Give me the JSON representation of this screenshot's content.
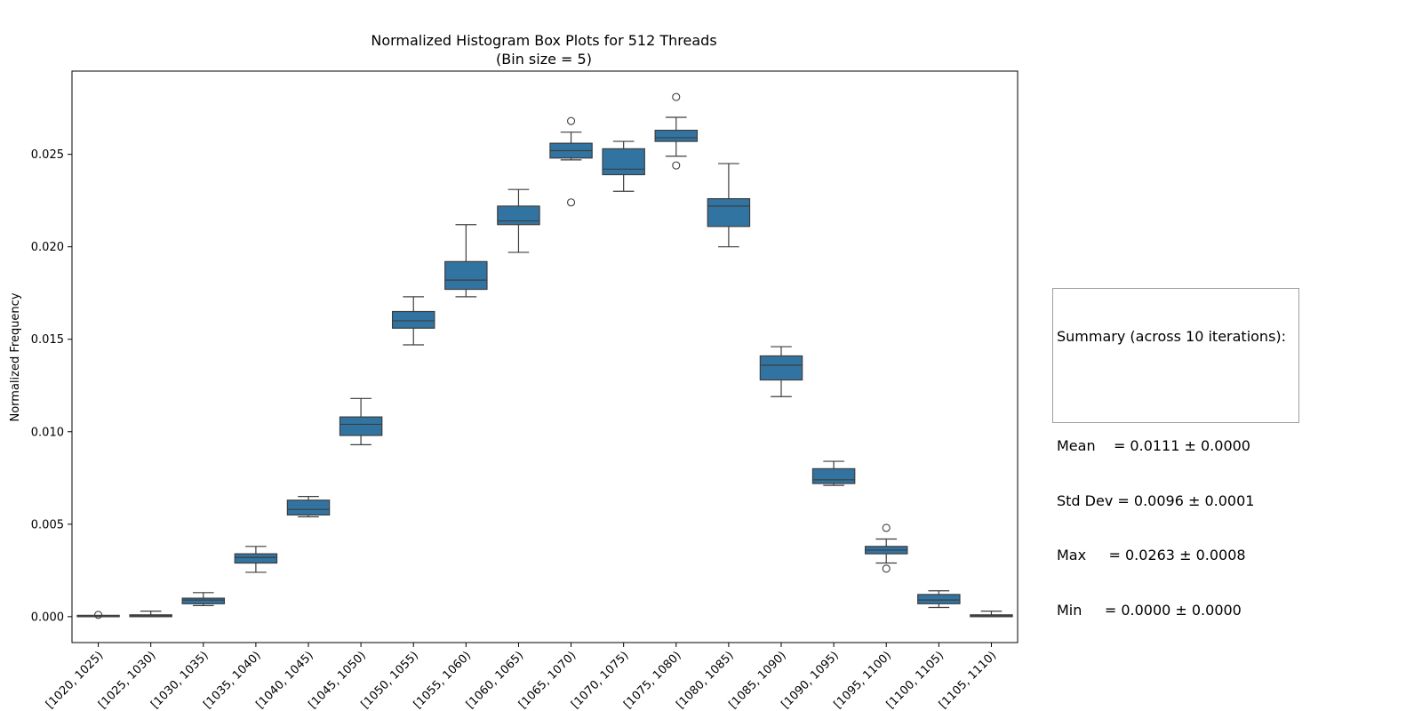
{
  "chart_data": {
    "type": "box",
    "title": "Normalized Histogram Box Plots for 512 Threads",
    "subtitle": "(Bin size = 5)",
    "xlabel": "",
    "ylabel": "Normalized Frequency",
    "ylim": [
      -0.0014,
      0.0295
    ],
    "yticks": [
      0.0,
      0.005,
      0.01,
      0.015,
      0.02,
      0.025
    ],
    "ytick_labels": [
      "0.000",
      "0.005",
      "0.010",
      "0.015",
      "0.020",
      "0.025"
    ],
    "grid": false,
    "box_color": "#3274a1",
    "edge_color": "#3d3d3d",
    "categories": [
      "[1020, 1025)",
      "[1025, 1030)",
      "[1030, 1035)",
      "[1035, 1040)",
      "[1040, 1045)",
      "[1045, 1050)",
      "[1050, 1055)",
      "[1055, 1060)",
      "[1060, 1065)",
      "[1065, 1070)",
      "[1070, 1075)",
      "[1075, 1080)",
      "[1080, 1085)",
      "[1085, 1090)",
      "[1090, 1095)",
      "[1095, 1100)",
      "[1100, 1105)",
      "[1105, 1110)"
    ],
    "boxes": [
      {
        "whisker_low": 0.0,
        "q1": 0.0,
        "median": 0.0,
        "q3": 0.0,
        "whisker_high": 0.0,
        "outliers": [
          0.0001
        ]
      },
      {
        "whisker_low": 0.0,
        "q1": 0.0,
        "median": 5e-05,
        "q3": 0.0001,
        "whisker_high": 0.0003,
        "outliers": []
      },
      {
        "whisker_low": 0.0006,
        "q1": 0.0007,
        "median": 0.0009,
        "q3": 0.001,
        "whisker_high": 0.0013,
        "outliers": []
      },
      {
        "whisker_low": 0.0024,
        "q1": 0.0029,
        "median": 0.0032,
        "q3": 0.0034,
        "whisker_high": 0.0038,
        "outliers": []
      },
      {
        "whisker_low": 0.0054,
        "q1": 0.0055,
        "median": 0.0058,
        "q3": 0.0063,
        "whisker_high": 0.0065,
        "outliers": []
      },
      {
        "whisker_low": 0.0093,
        "q1": 0.0098,
        "median": 0.0104,
        "q3": 0.0108,
        "whisker_high": 0.0118,
        "outliers": []
      },
      {
        "whisker_low": 0.0147,
        "q1": 0.0156,
        "median": 0.016,
        "q3": 0.0165,
        "whisker_high": 0.0173,
        "outliers": []
      },
      {
        "whisker_low": 0.0173,
        "q1": 0.0177,
        "median": 0.0182,
        "q3": 0.0192,
        "whisker_high": 0.0212,
        "outliers": []
      },
      {
        "whisker_low": 0.0197,
        "q1": 0.0212,
        "median": 0.0214,
        "q3": 0.0222,
        "whisker_high": 0.0231,
        "outliers": []
      },
      {
        "whisker_low": 0.0247,
        "q1": 0.0248,
        "median": 0.0252,
        "q3": 0.0256,
        "whisker_high": 0.0262,
        "outliers": [
          0.0268,
          0.0224
        ]
      },
      {
        "whisker_low": 0.023,
        "q1": 0.0239,
        "median": 0.0242,
        "q3": 0.0253,
        "whisker_high": 0.0257,
        "outliers": []
      },
      {
        "whisker_low": 0.0249,
        "q1": 0.0257,
        "median": 0.0259,
        "q3": 0.0263,
        "whisker_high": 0.027,
        "outliers": [
          0.0281,
          0.0244
        ]
      },
      {
        "whisker_low": 0.02,
        "q1": 0.0211,
        "median": 0.0222,
        "q3": 0.0226,
        "whisker_high": 0.0245,
        "outliers": []
      },
      {
        "whisker_low": 0.0119,
        "q1": 0.0128,
        "median": 0.0136,
        "q3": 0.0141,
        "whisker_high": 0.0146,
        "outliers": []
      },
      {
        "whisker_low": 0.0071,
        "q1": 0.0072,
        "median": 0.0074,
        "q3": 0.008,
        "whisker_high": 0.0084,
        "outliers": []
      },
      {
        "whisker_low": 0.0029,
        "q1": 0.0034,
        "median": 0.0036,
        "q3": 0.0038,
        "whisker_high": 0.0042,
        "outliers": [
          0.0048,
          0.0026
        ]
      },
      {
        "whisker_low": 0.0005,
        "q1": 0.0007,
        "median": 0.0009,
        "q3": 0.0012,
        "whisker_high": 0.0014,
        "outliers": []
      },
      {
        "whisker_low": 0.0,
        "q1": 0.0,
        "median": 5e-05,
        "q3": 0.0001,
        "whisker_high": 0.0003,
        "outliers": []
      }
    ]
  },
  "summary": {
    "heading": "Summary (across 10 iterations):",
    "mean": "Mean    = 0.0111 ± 0.0000",
    "std_dev": "Std Dev = 0.0096 ± 0.0001",
    "max": "Max     = 0.0263 ± 0.0008",
    "min": "Min     = 0.0000 ± 0.0000"
  }
}
